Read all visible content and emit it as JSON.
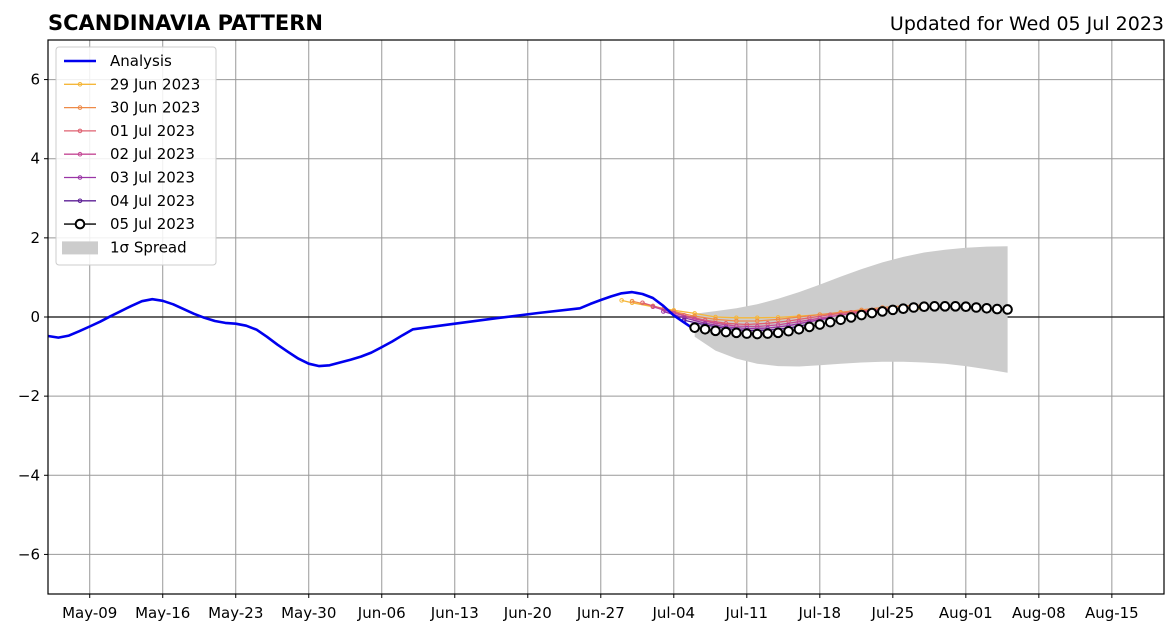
{
  "header": {
    "title": "SCANDINAVIA PATTERN",
    "updated": "Updated for Wed 05 Jul 2023"
  },
  "chart_data": {
    "type": "line",
    "title": "SCANDINAVIA PATTERN",
    "subtitle": "Updated for Wed 05 Jul 2023",
    "xlabel": "",
    "ylabel": "",
    "x_axis": {
      "type": "date",
      "range": [
        "2023-05-05",
        "2023-08-20"
      ],
      "ticks": [
        "2023-05-09",
        "2023-05-16",
        "2023-05-23",
        "2023-05-30",
        "2023-06-06",
        "2023-06-13",
        "2023-06-20",
        "2023-06-27",
        "2023-07-04",
        "2023-07-11",
        "2023-07-18",
        "2023-07-25",
        "2023-08-01",
        "2023-08-08",
        "2023-08-15"
      ],
      "tick_labels": [
        "May-09",
        "May-16",
        "May-23",
        "May-30",
        "Jun-06",
        "Jun-13",
        "Jun-20",
        "Jun-27",
        "Jul-04",
        "Jul-11",
        "Jul-18",
        "Jul-25",
        "Aug-01",
        "Aug-08",
        "Aug-15"
      ]
    },
    "y_axis": {
      "range": [
        -7,
        7
      ],
      "ticks": [
        -6,
        -4,
        -2,
        0,
        2,
        4,
        6
      ],
      "tick_labels": [
        "−6",
        "−4",
        "−2",
        "0",
        "2",
        "4",
        "6"
      ]
    },
    "grid": true,
    "legend_position": "top-left",
    "colors": {
      "analysis": "#0000ee",
      "f0629": "#f5b73a",
      "f0630": "#ee8a48",
      "f0701": "#df6070",
      "f0702": "#c54a96",
      "f0703": "#9a35a6",
      "f0704": "#5d1f96",
      "f0705": "#000000",
      "spread": "#cccccc",
      "grid": "#999999"
    },
    "series": [
      {
        "key": "analysis",
        "name": "Analysis",
        "points": [
          [
            "2023-05-05",
            -0.48
          ],
          [
            "2023-05-06",
            -0.52
          ],
          [
            "2023-05-07",
            -0.47
          ],
          [
            "2023-05-08",
            -0.36
          ],
          [
            "2023-05-09",
            -0.24
          ],
          [
            "2023-05-10",
            -0.12
          ],
          [
            "2023-05-11",
            0.02
          ],
          [
            "2023-05-12",
            0.15
          ],
          [
            "2023-05-13",
            0.28
          ],
          [
            "2023-05-14",
            0.4
          ],
          [
            "2023-05-15",
            0.45
          ],
          [
            "2023-05-16",
            0.41
          ],
          [
            "2023-05-17",
            0.32
          ],
          [
            "2023-05-18",
            0.2
          ],
          [
            "2023-05-19",
            0.08
          ],
          [
            "2023-05-20",
            -0.02
          ],
          [
            "2023-05-21",
            -0.1
          ],
          [
            "2023-05-22",
            -0.15
          ],
          [
            "2023-05-23",
            -0.17
          ],
          [
            "2023-05-24",
            -0.22
          ],
          [
            "2023-05-25",
            -0.32
          ],
          [
            "2023-05-26",
            -0.5
          ],
          [
            "2023-05-27",
            -0.7
          ],
          [
            "2023-05-28",
            -0.88
          ],
          [
            "2023-05-29",
            -1.05
          ],
          [
            "2023-05-30",
            -1.18
          ],
          [
            "2023-05-31",
            -1.24
          ],
          [
            "2023-06-01",
            -1.22
          ],
          [
            "2023-06-02",
            -1.15
          ],
          [
            "2023-06-03",
            -1.08
          ],
          [
            "2023-06-04",
            -1.0
          ],
          [
            "2023-06-05",
            -0.9
          ],
          [
            "2023-06-06",
            -0.76
          ],
          [
            "2023-06-07",
            -0.62
          ],
          [
            "2023-06-08",
            -0.46
          ],
          [
            "2023-06-09",
            -0.31
          ],
          [
            "2023-06-13",
            -0.17
          ],
          [
            "2023-06-17",
            -0.03
          ],
          [
            "2023-06-21",
            0.1
          ],
          [
            "2023-06-25",
            0.22
          ],
          [
            "2023-06-26",
            0.33
          ],
          [
            "2023-06-27",
            0.43
          ],
          [
            "2023-06-28",
            0.52
          ],
          [
            "2023-06-29",
            0.6
          ],
          [
            "2023-06-30",
            0.63
          ],
          [
            "2023-07-01",
            0.58
          ],
          [
            "2023-07-02",
            0.48
          ],
          [
            "2023-07-03",
            0.28
          ],
          [
            "2023-07-04",
            0.04
          ],
          [
            "2023-07-05",
            -0.14
          ],
          [
            "2023-07-06",
            -0.32
          ]
        ]
      },
      {
        "key": "f0629",
        "name": "29 Jun 2023",
        "points": [
          [
            "2023-06-29",
            0.42
          ],
          [
            "2023-06-30",
            0.36
          ],
          [
            "2023-07-02",
            0.26
          ],
          [
            "2023-07-04",
            0.17
          ],
          [
            "2023-07-06",
            0.09
          ],
          [
            "2023-07-08",
            0.0
          ],
          [
            "2023-07-10",
            -0.02
          ],
          [
            "2023-07-12",
            -0.02
          ],
          [
            "2023-07-14",
            -0.01
          ],
          [
            "2023-07-16",
            0.02
          ],
          [
            "2023-07-18",
            0.06
          ],
          [
            "2023-07-20",
            0.1
          ],
          [
            "2023-07-22",
            0.15
          ],
          [
            "2023-07-24",
            0.2
          ],
          [
            "2023-07-26",
            0.21
          ],
          [
            "2023-07-28",
            0.2
          ]
        ]
      },
      {
        "key": "f0630",
        "name": "30 Jun 2023",
        "points": [
          [
            "2023-06-30",
            0.4
          ],
          [
            "2023-07-02",
            0.28
          ],
          [
            "2023-07-04",
            0.14
          ],
          [
            "2023-07-06",
            0.02
          ],
          [
            "2023-07-08",
            -0.06
          ],
          [
            "2023-07-10",
            -0.1
          ],
          [
            "2023-07-12",
            -0.1
          ],
          [
            "2023-07-14",
            -0.06
          ],
          [
            "2023-07-16",
            0.0
          ],
          [
            "2023-07-18",
            0.06
          ],
          [
            "2023-07-20",
            0.12
          ],
          [
            "2023-07-22",
            0.18
          ],
          [
            "2023-07-24",
            0.24
          ],
          [
            "2023-07-26",
            0.28
          ],
          [
            "2023-07-28",
            0.3
          ]
        ]
      },
      {
        "key": "f0701",
        "name": "01 Jul 2023",
        "points": [
          [
            "2023-07-01",
            0.36
          ],
          [
            "2023-07-03",
            0.2
          ],
          [
            "2023-07-05",
            0.04
          ],
          [
            "2023-07-07",
            -0.08
          ],
          [
            "2023-07-09",
            -0.16
          ],
          [
            "2023-07-11",
            -0.19
          ],
          [
            "2023-07-13",
            -0.16
          ],
          [
            "2023-07-15",
            -0.1
          ],
          [
            "2023-07-17",
            -0.02
          ],
          [
            "2023-07-19",
            0.06
          ],
          [
            "2023-07-21",
            0.12
          ],
          [
            "2023-07-23",
            0.18
          ],
          [
            "2023-07-25",
            0.22
          ]
        ]
      },
      {
        "key": "f0702",
        "name": "02 Jul 2023",
        "points": [
          [
            "2023-07-02",
            0.26
          ],
          [
            "2023-07-04",
            0.1
          ],
          [
            "2023-07-06",
            -0.05
          ],
          [
            "2023-07-08",
            -0.16
          ],
          [
            "2023-07-10",
            -0.23
          ],
          [
            "2023-07-12",
            -0.24
          ],
          [
            "2023-07-14",
            -0.2
          ],
          [
            "2023-07-16",
            -0.12
          ],
          [
            "2023-07-18",
            -0.03
          ],
          [
            "2023-07-20",
            0.05
          ],
          [
            "2023-07-22",
            0.12
          ],
          [
            "2023-07-24",
            0.18
          ],
          [
            "2023-07-26",
            0.21
          ]
        ]
      },
      {
        "key": "f0703",
        "name": "03 Jul 2023",
        "points": [
          [
            "2023-07-03",
            0.14
          ],
          [
            "2023-07-05",
            -0.02
          ],
          [
            "2023-07-07",
            -0.16
          ],
          [
            "2023-07-09",
            -0.25
          ],
          [
            "2023-07-11",
            -0.29
          ],
          [
            "2023-07-13",
            -0.28
          ],
          [
            "2023-07-15",
            -0.22
          ],
          [
            "2023-07-17",
            -0.12
          ],
          [
            "2023-07-19",
            -0.02
          ]
        ]
      },
      {
        "key": "f0704",
        "name": "04 Jul 2023",
        "points": [
          [
            "2023-07-05",
            -0.08
          ],
          [
            "2023-07-07",
            -0.2
          ],
          [
            "2023-07-09",
            -0.29
          ],
          [
            "2023-07-11",
            -0.34
          ],
          [
            "2023-07-13",
            -0.33
          ],
          [
            "2023-07-15",
            -0.28
          ],
          [
            "2023-07-17",
            -0.18
          ]
        ]
      },
      {
        "key": "f0705",
        "name": "05 Jul 2023",
        "points": [
          [
            "2023-07-06",
            -0.27
          ],
          [
            "2023-07-07",
            -0.31
          ],
          [
            "2023-07-08",
            -0.35
          ],
          [
            "2023-07-09",
            -0.38
          ],
          [
            "2023-07-10",
            -0.4
          ],
          [
            "2023-07-11",
            -0.42
          ],
          [
            "2023-07-12",
            -0.43
          ],
          [
            "2023-07-13",
            -0.42
          ],
          [
            "2023-07-14",
            -0.4
          ],
          [
            "2023-07-15",
            -0.36
          ],
          [
            "2023-07-16",
            -0.31
          ],
          [
            "2023-07-17",
            -0.25
          ],
          [
            "2023-07-18",
            -0.19
          ],
          [
            "2023-07-19",
            -0.13
          ],
          [
            "2023-07-20",
            -0.07
          ],
          [
            "2023-07-21",
            -0.01
          ],
          [
            "2023-07-22",
            0.05
          ],
          [
            "2023-07-23",
            0.1
          ],
          [
            "2023-07-24",
            0.14
          ],
          [
            "2023-07-25",
            0.18
          ],
          [
            "2023-07-26",
            0.21
          ],
          [
            "2023-07-27",
            0.24
          ],
          [
            "2023-07-28",
            0.26
          ],
          [
            "2023-07-29",
            0.27
          ],
          [
            "2023-07-30",
            0.27
          ],
          [
            "2023-07-31",
            0.27
          ],
          [
            "2023-08-01",
            0.26
          ],
          [
            "2023-08-02",
            0.24
          ],
          [
            "2023-08-03",
            0.22
          ],
          [
            "2023-08-04",
            0.2
          ],
          [
            "2023-08-05",
            0.19
          ]
        ]
      }
    ],
    "spread": {
      "name": "1σ Spread",
      "upper": [
        [
          "2023-07-06",
          0.08
        ],
        [
          "2023-07-08",
          0.15
        ],
        [
          "2023-07-10",
          0.22
        ],
        [
          "2023-07-12",
          0.32
        ],
        [
          "2023-07-14",
          0.46
        ],
        [
          "2023-07-16",
          0.63
        ],
        [
          "2023-07-18",
          0.82
        ],
        [
          "2023-07-20",
          1.02
        ],
        [
          "2023-07-22",
          1.21
        ],
        [
          "2023-07-24",
          1.38
        ],
        [
          "2023-07-26",
          1.52
        ],
        [
          "2023-07-28",
          1.63
        ],
        [
          "2023-07-30",
          1.7
        ],
        [
          "2023-08-01",
          1.75
        ],
        [
          "2023-08-03",
          1.78
        ],
        [
          "2023-08-05",
          1.79
        ]
      ],
      "lower": [
        [
          "2023-07-06",
          -0.5
        ],
        [
          "2023-07-08",
          -0.85
        ],
        [
          "2023-07-10",
          -1.05
        ],
        [
          "2023-07-12",
          -1.18
        ],
        [
          "2023-07-14",
          -1.24
        ],
        [
          "2023-07-16",
          -1.25
        ],
        [
          "2023-07-18",
          -1.22
        ],
        [
          "2023-07-20",
          -1.18
        ],
        [
          "2023-07-22",
          -1.15
        ],
        [
          "2023-07-24",
          -1.13
        ],
        [
          "2023-07-26",
          -1.13
        ],
        [
          "2023-07-28",
          -1.15
        ],
        [
          "2023-07-30",
          -1.18
        ],
        [
          "2023-08-01",
          -1.24
        ],
        [
          "2023-08-03",
          -1.32
        ],
        [
          "2023-08-05",
          -1.41
        ]
      ]
    },
    "legend": [
      {
        "key": "analysis",
        "label": "Analysis"
      },
      {
        "key": "f0629",
        "label": "29 Jun 2023"
      },
      {
        "key": "f0630",
        "label": "30 Jun 2023"
      },
      {
        "key": "f0701",
        "label": "01 Jul 2023"
      },
      {
        "key": "f0702",
        "label": "02 Jul 2023"
      },
      {
        "key": "f0703",
        "label": "03 Jul 2023"
      },
      {
        "key": "f0704",
        "label": "04 Jul 2023"
      },
      {
        "key": "f0705",
        "label": "05 Jul 2023"
      },
      {
        "key": "spread",
        "label": "1σ Spread"
      }
    ]
  }
}
